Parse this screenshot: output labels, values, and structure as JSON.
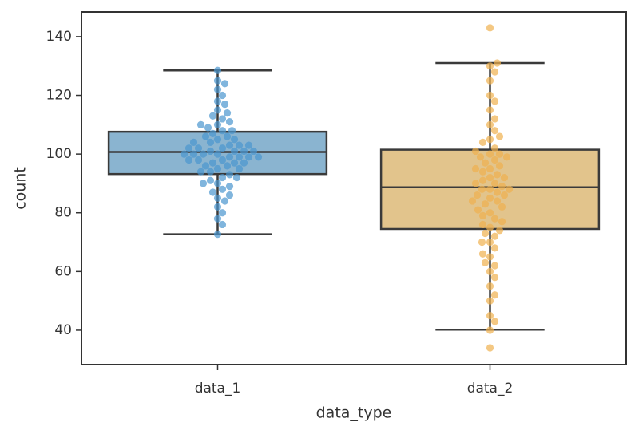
{
  "chart_data": {
    "type": "box",
    "xlabel": "data_type",
    "ylabel": "count",
    "categories": [
      "data_1",
      "data_2"
    ],
    "ylim": [
      28.3,
      148.4
    ],
    "yticks": [
      40,
      60,
      80,
      100,
      120,
      140
    ],
    "series": [
      {
        "name": "data_1",
        "color": "#8ab4d0",
        "point_color": "#4a96cf",
        "whislo": 72.7,
        "q1": 93.2,
        "med": 100.7,
        "q3": 107.6,
        "whishi": 128.5,
        "points": [
          100,
          102,
          98,
          105,
          95,
          101,
          99,
          103,
          97,
          110,
          90,
          108,
          92,
          104,
          96,
          112,
          88,
          106,
          94,
          100,
          101,
          99,
          115,
          85,
          107,
          93,
          102,
          98,
          118,
          82,
          109,
          91,
          103,
          97,
          120,
          80,
          111,
          89,
          100,
          104,
          96,
          122,
          78,
          113,
          87,
          106,
          94,
          101,
          99,
          125,
          76,
          117,
          84,
          102,
          98,
          128.5,
          72.7,
          105,
          95,
          100,
          103,
          97,
          108,
          92,
          114,
          86,
          101,
          99,
          110,
          90,
          124
        ]
      },
      {
        "name": "data_2",
        "color": "#e2c48c",
        "point_color": "#efb04f",
        "whislo": 40.2,
        "q1": 74.5,
        "med": 88.7,
        "q3": 101.5,
        "whishi": 131,
        "points": [
          88,
          90,
          85,
          95,
          80,
          100,
          75,
          92,
          84,
          98,
          78,
          105,
          70,
          110,
          65,
          88,
          93,
          83,
          97,
          79,
          102,
          72,
          115,
          60,
          120,
          55,
          87,
          91,
          86,
          99,
          77,
          108,
          68,
          112,
          62,
          125,
          50,
          130,
          45,
          143,
          34,
          89,
          94,
          82,
          96,
          76,
          104,
          66,
          118,
          58,
          100,
          74,
          90,
          86,
          84,
          92,
          73,
          101,
          81,
          106,
          63,
          128,
          52,
          95,
          70,
          40,
          43,
          131,
          88,
          99
        ]
      }
    ]
  }
}
